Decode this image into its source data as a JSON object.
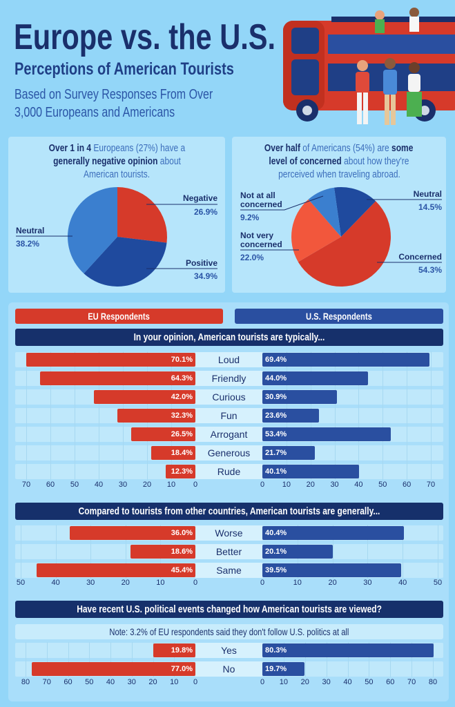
{
  "header": {
    "title": "Europe vs. the U.S.",
    "subtitle": "Perceptions of American Tourists",
    "description_lines": [
      "Based on Survey Responses From Over",
      "3,000 Europeans and Americans"
    ]
  },
  "legend": {
    "eu": "EU Respondents",
    "us": "U.S. Respondents",
    "eu_color": "#d63a2a",
    "us_color": "#2a4fa0"
  },
  "chart_data": [
    {
      "type": "pie",
      "headline_lines": [
        [
          {
            "text": "Over 1 in 4",
            "bold": true
          },
          {
            "text": " Europeans (27%) have a",
            "bold": false
          }
        ],
        [
          {
            "text": "generally negative opinion",
            "bold": true
          },
          {
            "text": " about",
            "bold": false
          }
        ],
        [
          {
            "text": "American tourists.",
            "bold": false
          }
        ]
      ],
      "slices": [
        {
          "label": "Negative",
          "value": 26.9,
          "display": "26.9%",
          "color": "#d63a2a"
        },
        {
          "label": "Positive",
          "value": 34.9,
          "display": "34.9%",
          "color": "#1f4a9e"
        },
        {
          "label": "Neutral",
          "value": 38.2,
          "display": "38.2%",
          "color": "#3b7fcf"
        }
      ]
    },
    {
      "type": "pie",
      "headline_lines": [
        [
          {
            "text": "Over half",
            "bold": true
          },
          {
            "text": " of Americans (54%) are ",
            "bold": false
          },
          {
            "text": "some",
            "bold": true
          }
        ],
        [
          {
            "text": "level of concerned",
            "bold": true
          },
          {
            "text": " about how they're",
            "bold": false
          }
        ],
        [
          {
            "text": "perceived when traveling abroad.",
            "bold": false
          }
        ]
      ],
      "slices": [
        {
          "label": "Neutral",
          "value": 14.5,
          "display": "14.5%",
          "color": "#1f4a9e"
        },
        {
          "label": "Concerned",
          "value": 54.3,
          "display": "54.3%",
          "color": "#d63a2a"
        },
        {
          "label": "Not very concerned",
          "label_lines": [
            "Not very",
            "concerned"
          ],
          "value": 22.0,
          "display": "22.0%",
          "color": "#f2573c"
        },
        {
          "label": "Not at all concerned",
          "label_lines": [
            "Not at all",
            "concerned"
          ],
          "value": 9.2,
          "display": "9.2%",
          "color": "#3b7fcf"
        }
      ]
    },
    {
      "type": "bar",
      "orientation": "diverging-horizontal",
      "title": "In your opinion, American tourists are typically...",
      "categories": [
        "Loud",
        "Friendly",
        "Curious",
        "Fun",
        "Arrogant",
        "Generous",
        "Rude"
      ],
      "series": [
        {
          "name": "EU Respondents",
          "values": [
            70.1,
            64.3,
            42.0,
            32.3,
            26.5,
            18.4,
            12.3
          ]
        },
        {
          "name": "U.S. Respondents",
          "values": [
            69.4,
            44.0,
            30.9,
            23.6,
            53.4,
            21.7,
            40.1
          ]
        }
      ],
      "xlim": [
        0,
        70
      ],
      "ticks": [
        0,
        10,
        20,
        30,
        40,
        50,
        60,
        70
      ],
      "grid": true
    },
    {
      "type": "bar",
      "orientation": "diverging-horizontal",
      "title": "Compared to tourists from other countries, American tourists are generally...",
      "categories": [
        "Worse",
        "Better",
        "Same"
      ],
      "series": [
        {
          "name": "EU Respondents",
          "values": [
            36.0,
            18.6,
            45.4
          ]
        },
        {
          "name": "U.S. Respondents",
          "values": [
            40.4,
            20.1,
            39.5
          ]
        }
      ],
      "xlim": [
        0,
        50
      ],
      "ticks": [
        0,
        10,
        20,
        30,
        40,
        50
      ],
      "grid": true
    },
    {
      "type": "bar",
      "orientation": "diverging-horizontal",
      "title": "Have recent U.S. political events changed how American tourists are viewed?",
      "note": "Note: 3.2% of EU respondents said they don't follow U.S. politics at all",
      "categories": [
        "Yes",
        "No"
      ],
      "series": [
        {
          "name": "EU Respondents",
          "values": [
            19.8,
            77.0
          ]
        },
        {
          "name": "U.S. Respondents",
          "values": [
            80.3,
            19.7
          ]
        }
      ],
      "xlim": [
        0,
        80
      ],
      "ticks": [
        0,
        10,
        20,
        30,
        40,
        50,
        60,
        70,
        80
      ],
      "grid": true
    }
  ]
}
